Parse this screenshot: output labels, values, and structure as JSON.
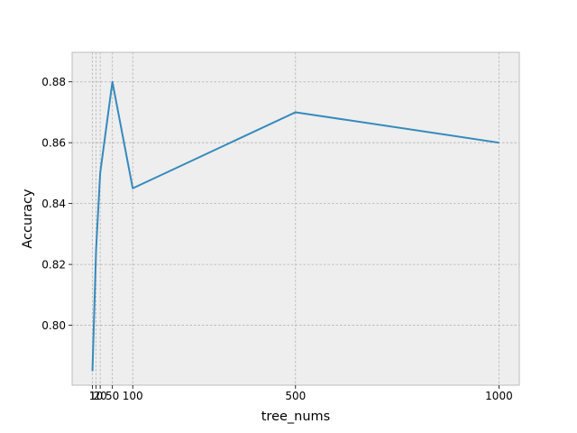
{
  "chart_data": {
    "type": "line",
    "title": "",
    "xlabel": "tree_nums",
    "ylabel": "Accuracy",
    "x": [
      1,
      10,
      20,
      50,
      100,
      500,
      1000
    ],
    "series": [
      {
        "values": [
          0.785,
          0.825,
          0.85,
          0.88,
          0.845,
          0.87,
          0.86
        ]
      }
    ],
    "xticks": [
      1,
      10,
      20,
      50,
      100,
      500,
      1000
    ],
    "xtick_labels": [
      "1",
      "10",
      "20",
      "50",
      "100",
      "500",
      "1000"
    ],
    "yticks": [
      0.8,
      0.82,
      0.84,
      0.86,
      0.88
    ],
    "ytick_labels": [
      "0.80",
      "0.82",
      "0.84",
      "0.86",
      "0.88"
    ],
    "xlim": [
      -48.95,
      1049.95
    ],
    "ylim": [
      0.7803,
      0.8897
    ],
    "grid": true,
    "colors": {
      "background": "#eeeeee",
      "grid": "#b2b2b2",
      "frame": "#bcbcbc",
      "line": "#348abd"
    }
  }
}
